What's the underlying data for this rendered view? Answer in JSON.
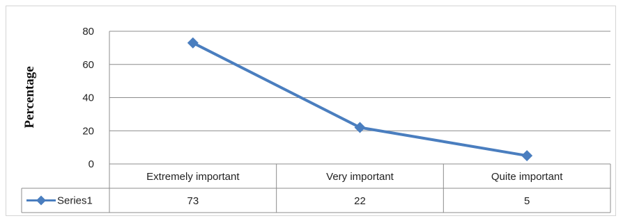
{
  "chart_data": {
    "type": "line",
    "categories": [
      "Extremely important",
      "Very important",
      "Quite important"
    ],
    "series": [
      {
        "name": "Series1",
        "values": [
          73,
          22,
          5
        ],
        "color": "#4a7ebf"
      }
    ],
    "title": "",
    "xlabel": "",
    "ylabel": "Percentage",
    "ylim": [
      0,
      80
    ],
    "yticks": [
      0,
      20,
      40,
      60,
      80
    ],
    "grid": true,
    "data_table": true,
    "legend": "data-table-left"
  }
}
